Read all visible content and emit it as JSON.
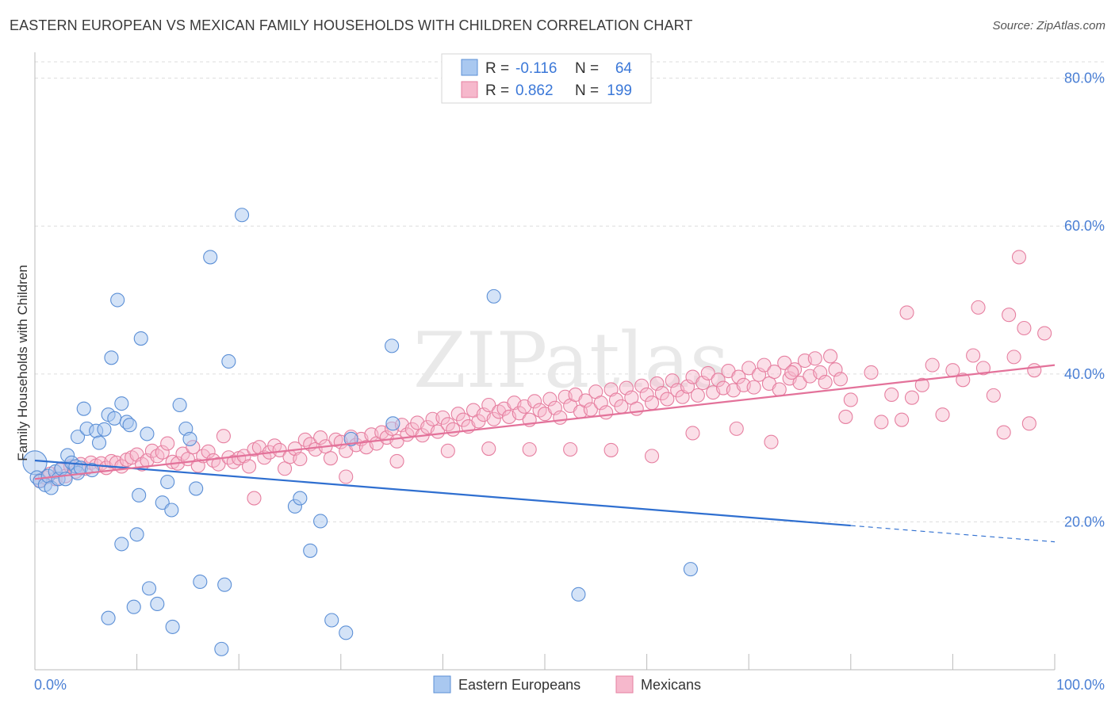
{
  "title": "EASTERN EUROPEAN VS MEXICAN FAMILY HOUSEHOLDS WITH CHILDREN CORRELATION CHART",
  "source": "Source: ZipAtlas.com",
  "watermark": "ZIPatlas",
  "colors": {
    "blue_fill": "#a9c8f0",
    "blue_stroke": "#5b8fd6",
    "blue_line": "#2f6fd0",
    "pink_fill": "#f6b8cc",
    "pink_stroke": "#e67fa0",
    "pink_line": "#e3729a",
    "tick_text": "#4a7fd4",
    "grid": "#dddddd"
  },
  "stats_legend": {
    "rows": [
      {
        "r_label": "R =",
        "r_value": "-0.116",
        "n_label": "N =",
        "n_value": "64"
      },
      {
        "r_label": "R =",
        "r_value": "0.862",
        "n_label": "N =",
        "n_value": "199"
      }
    ]
  },
  "chart_data": {
    "type": "scatter",
    "title": "EASTERN EUROPEAN VS MEXICAN FAMILY HOUSEHOLDS WITH CHILDREN CORRELATION CHART",
    "xlabel": "",
    "ylabel": "Family Households with Children",
    "xlim": [
      0,
      100
    ],
    "ylim": [
      0,
      82
    ],
    "x_tick_labels": [
      "0.0%",
      "100.0%"
    ],
    "y_ticks": [
      20,
      40,
      60,
      80
    ],
    "y_tick_labels": [
      "20.0%",
      "40.0%",
      "60.0%",
      "80.0%"
    ],
    "grid": "horizontal dashed",
    "legend_position": "bottom-center",
    "series": [
      {
        "name": "Eastern Europeans",
        "color": "#a9c8f0",
        "trend": {
          "x": [
            0,
            80
          ],
          "y": [
            28.3,
            19.5
          ],
          "dashed_to": [
            100,
            17.3
          ]
        },
        "points": [
          [
            0,
            28
          ],
          [
            0.2,
            26
          ],
          [
            0.5,
            25.5
          ],
          [
            1,
            25
          ],
          [
            1.3,
            26.2
          ],
          [
            1.6,
            24.6
          ],
          [
            2,
            26.8
          ],
          [
            2.3,
            25.8
          ],
          [
            2.6,
            27.2
          ],
          [
            3,
            25.8
          ],
          [
            3.2,
            29
          ],
          [
            3.6,
            28
          ],
          [
            4,
            27.5
          ],
          [
            4.2,
            26.6
          ],
          [
            4.5,
            27.3
          ],
          [
            4.2,
            31.5
          ],
          [
            4.8,
            35.3
          ],
          [
            5.1,
            32.6
          ],
          [
            5.6,
            27
          ],
          [
            6,
            32.3
          ],
          [
            6.3,
            30.7
          ],
          [
            6.8,
            32.5
          ],
          [
            7.2,
            34.5
          ],
          [
            7.5,
            42.2
          ],
          [
            7.8,
            34
          ],
          [
            8.1,
            50
          ],
          [
            8.5,
            36
          ],
          [
            9,
            33.5
          ],
          [
            9.3,
            33.1
          ],
          [
            10.4,
            44.8
          ],
          [
            11,
            31.9
          ],
          [
            12.5,
            22.6
          ],
          [
            13,
            25.4
          ],
          [
            13.4,
            21.6
          ],
          [
            14.2,
            35.8
          ],
          [
            14.8,
            32.6
          ],
          [
            15.2,
            31.2
          ],
          [
            15.8,
            24.5
          ],
          [
            17.2,
            55.8
          ],
          [
            19,
            41.7
          ],
          [
            20.3,
            61.5
          ],
          [
            25.5,
            22.1
          ],
          [
            26,
            23.2
          ],
          [
            27,
            16.1
          ],
          [
            28,
            20.1
          ],
          [
            31,
            31.2
          ],
          [
            35,
            43.8
          ],
          [
            35.1,
            33.3
          ],
          [
            45,
            50.5
          ],
          [
            8.5,
            17
          ],
          [
            10,
            18.3
          ],
          [
            11.2,
            11
          ],
          [
            12,
            8.9
          ],
          [
            13.5,
            5.8
          ],
          [
            16.2,
            11.9
          ],
          [
            18.6,
            11.5
          ],
          [
            18.3,
            2.8
          ],
          [
            29.1,
            6.7
          ],
          [
            30.5,
            5
          ],
          [
            53.3,
            10.2
          ],
          [
            64.3,
            13.6
          ],
          [
            10.2,
            23.6
          ],
          [
            7.2,
            7
          ],
          [
            9.7,
            8.5
          ]
        ]
      },
      {
        "name": "Mexicans",
        "color": "#f6b8cc",
        "trend": {
          "x": [
            0,
            100
          ],
          "y": [
            25.8,
            41.2
          ]
        },
        "points": [
          [
            0.5,
            25.6
          ],
          [
            1,
            26
          ],
          [
            1.5,
            26.5
          ],
          [
            2,
            25.8
          ],
          [
            2.5,
            27
          ],
          [
            3,
            26.2
          ],
          [
            3.5,
            27.5
          ],
          [
            4,
            26.8
          ],
          [
            4.5,
            27.8
          ],
          [
            5,
            27.2
          ],
          [
            5.5,
            28
          ],
          [
            6,
            27.6
          ],
          [
            6.5,
            27.9
          ],
          [
            7,
            27.3
          ],
          [
            7.5,
            28.2
          ],
          [
            8,
            28
          ],
          [
            8.5,
            27.5
          ],
          [
            9,
            28.4
          ],
          [
            9.5,
            28.7
          ],
          [
            10,
            29.1
          ],
          [
            10.5,
            27.8
          ],
          [
            11,
            28.3
          ],
          [
            11.5,
            29.6
          ],
          [
            12,
            28.9
          ],
          [
            12.5,
            29.4
          ],
          [
            13,
            30.6
          ],
          [
            13.5,
            28.1
          ],
          [
            14,
            27.9
          ],
          [
            14.5,
            29.2
          ],
          [
            15,
            28.5
          ],
          [
            15.5,
            30.1
          ],
          [
            16,
            27.6
          ],
          [
            16.5,
            28.9
          ],
          [
            17,
            29.5
          ],
          [
            17.5,
            28.3
          ],
          [
            18,
            27.8
          ],
          [
            18.5,
            31.6
          ],
          [
            19,
            28.7
          ],
          [
            19.5,
            28.1
          ],
          [
            20,
            28.6
          ],
          [
            20.5,
            28.9
          ],
          [
            21,
            27.5
          ],
          [
            21.5,
            29.8
          ],
          [
            22,
            30.1
          ],
          [
            22.5,
            28.7
          ],
          [
            23,
            29.4
          ],
          [
            23.5,
            30.3
          ],
          [
            24,
            29.7
          ],
          [
            24.5,
            27.2
          ],
          [
            25,
            28.8
          ],
          [
            25.5,
            29.9
          ],
          [
            26,
            28.5
          ],
          [
            26.5,
            31.1
          ],
          [
            27,
            30.5
          ],
          [
            27.5,
            29.8
          ],
          [
            28,
            31.4
          ],
          [
            28.5,
            30.2
          ],
          [
            29,
            28.6
          ],
          [
            29.5,
            31.1
          ],
          [
            30,
            30.8
          ],
          [
            30.5,
            29.6
          ],
          [
            31,
            31.5
          ],
          [
            31.5,
            30.4
          ],
          [
            32,
            31.2
          ],
          [
            32.5,
            30.1
          ],
          [
            33,
            31.8
          ],
          [
            33.5,
            30.6
          ],
          [
            34,
            32.1
          ],
          [
            34.5,
            31.4
          ],
          [
            35,
            32.6
          ],
          [
            35.5,
            30.9
          ],
          [
            36,
            33.1
          ],
          [
            36.5,
            31.8
          ],
          [
            37,
            32.5
          ],
          [
            37.5,
            33.4
          ],
          [
            38,
            31.7
          ],
          [
            38.5,
            32.8
          ],
          [
            39,
            33.9
          ],
          [
            39.5,
            32.2
          ],
          [
            40,
            34.1
          ],
          [
            40.5,
            33.2
          ],
          [
            41,
            32.5
          ],
          [
            41.5,
            34.6
          ],
          [
            42,
            33.8
          ],
          [
            42.5,
            32.9
          ],
          [
            43,
            35.1
          ],
          [
            43.5,
            33.6
          ],
          [
            44,
            34.5
          ],
          [
            44.5,
            35.8
          ],
          [
            45,
            33.9
          ],
          [
            45.5,
            34.9
          ],
          [
            46,
            35.3
          ],
          [
            46.5,
            34.2
          ],
          [
            47,
            36.1
          ],
          [
            47.5,
            34.7
          ],
          [
            48,
            35.6
          ],
          [
            48.5,
            33.8
          ],
          [
            49,
            36.3
          ],
          [
            49.5,
            35.1
          ],
          [
            50,
            34.6
          ],
          [
            50.5,
            36.6
          ],
          [
            51,
            35.4
          ],
          [
            51.5,
            34.1
          ],
          [
            52,
            36.9
          ],
          [
            52.5,
            35.7
          ],
          [
            53,
            37.2
          ],
          [
            53.5,
            34.9
          ],
          [
            54,
            36.4
          ],
          [
            54.5,
            35.2
          ],
          [
            55,
            37.6
          ],
          [
            55.5,
            36.1
          ],
          [
            56,
            34.8
          ],
          [
            56.5,
            37.9
          ],
          [
            57,
            36.5
          ],
          [
            57.5,
            35.6
          ],
          [
            58,
            38.1
          ],
          [
            58.5,
            36.8
          ],
          [
            59,
            35.3
          ],
          [
            59.5,
            38.4
          ],
          [
            60,
            37.2
          ],
          [
            60.5,
            36.1
          ],
          [
            61,
            38.7
          ],
          [
            61.5,
            37.4
          ],
          [
            62,
            36.6
          ],
          [
            62.5,
            39.1
          ],
          [
            63,
            37.8
          ],
          [
            63.5,
            36.9
          ],
          [
            64,
            38.3
          ],
          [
            64.5,
            39.6
          ],
          [
            65,
            37.1
          ],
          [
            65.5,
            38.8
          ],
          [
            66,
            40.1
          ],
          [
            66.5,
            37.5
          ],
          [
            67,
            39.2
          ],
          [
            67.5,
            38.1
          ],
          [
            68,
            40.4
          ],
          [
            68.5,
            37.8
          ],
          [
            69,
            39.6
          ],
          [
            69.5,
            38.5
          ],
          [
            70,
            40.8
          ],
          [
            70.5,
            38.2
          ],
          [
            71,
            39.9
          ],
          [
            71.5,
            41.2
          ],
          [
            72,
            38.7
          ],
          [
            72.5,
            40.3
          ],
          [
            73,
            37.9
          ],
          [
            73.5,
            41.5
          ],
          [
            74,
            39.4
          ],
          [
            74.5,
            40.6
          ],
          [
            75,
            38.8
          ],
          [
            75.5,
            41.8
          ],
          [
            76,
            39.7
          ],
          [
            76.5,
            42.1
          ],
          [
            77,
            40.2
          ],
          [
            77.5,
            38.9
          ],
          [
            78,
            42.4
          ],
          [
            78.5,
            40.6
          ],
          [
            79,
            39.3
          ],
          [
            80,
            36.5
          ],
          [
            82,
            40.2
          ],
          [
            83,
            33.5
          ],
          [
            84,
            37.2
          ],
          [
            85,
            33.8
          ],
          [
            86,
            36.8
          ],
          [
            87,
            38.5
          ],
          [
            88,
            41.2
          ],
          [
            89,
            34.5
          ],
          [
            90,
            40.5
          ],
          [
            91,
            39.2
          ],
          [
            92,
            42.5
          ],
          [
            93,
            40.8
          ],
          [
            94,
            37.1
          ],
          [
            95,
            32.1
          ],
          [
            96,
            42.3
          ],
          [
            97,
            46.2
          ],
          [
            98,
            40.5
          ],
          [
            99,
            45.5
          ],
          [
            85.5,
            48.3
          ],
          [
            92.5,
            49
          ],
          [
            95.5,
            48
          ],
          [
            96.5,
            55.8
          ],
          [
            97.5,
            33.3
          ],
          [
            79.5,
            34.2
          ],
          [
            74.2,
            40.2
          ],
          [
            72.2,
            30.8
          ],
          [
            68.8,
            32.6
          ],
          [
            64.5,
            32
          ],
          [
            60.5,
            28.9
          ],
          [
            56.5,
            29.7
          ],
          [
            52.5,
            29.8
          ],
          [
            48.5,
            29.8
          ],
          [
            44.5,
            29.9
          ],
          [
            40.5,
            29.6
          ],
          [
            35.5,
            28.2
          ],
          [
            30.5,
            26.1
          ],
          [
            21.5,
            23.2
          ]
        ]
      }
    ]
  },
  "bottom_legend": {
    "items": [
      {
        "label": "Eastern Europeans"
      },
      {
        "label": "Mexicans"
      }
    ]
  }
}
